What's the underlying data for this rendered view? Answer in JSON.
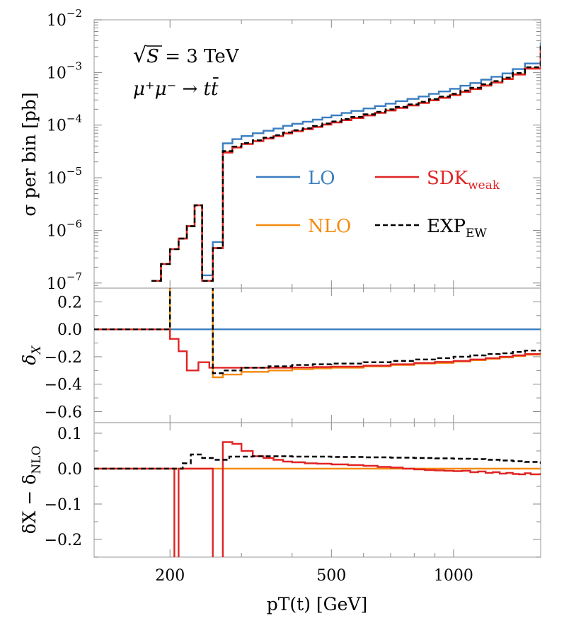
{
  "chart_data": [
    {
      "panel": "top",
      "type": "line",
      "ylabel": "σ per bin [pb]",
      "yscale": "log",
      "ylim": [
        8e-08,
        0.01
      ],
      "yticks": [
        {
          "value": 1e-07,
          "base": "10",
          "exp": "−7"
        },
        {
          "value": 1e-06,
          "base": "10",
          "exp": "−6"
        },
        {
          "value": 1e-05,
          "base": "10",
          "exp": "−5"
        },
        {
          "value": 0.0001,
          "base": "10",
          "exp": "−4"
        },
        {
          "value": 0.001,
          "base": "10",
          "exp": "−3"
        },
        {
          "value": 0.01,
          "base": "10",
          "exp": "−2"
        }
      ],
      "annotations": [
        {
          "sqrt": "√",
          "symbol": "S",
          "text": " = 3 TeV"
        },
        {
          "text": "μ⁺μ⁻ → tt̄"
        }
      ],
      "legend": [
        {
          "base": "LO",
          "sub": "",
          "color": "#3a7ec0",
          "style": "solid"
        },
        {
          "base": "SDK",
          "sub": "weak",
          "color": "#e02425",
          "style": "solid"
        },
        {
          "base": "NLO",
          "sub": "",
          "color": "#f58a0f",
          "style": "solid"
        },
        {
          "base": "EXP",
          "sub": "EW",
          "color": "#000000",
          "style": "dashed"
        }
      ],
      "series": [
        {
          "name": "LO",
          "color": "#3a7ec0",
          "x": [
            180,
            190,
            200,
            210,
            220,
            230,
            240,
            255,
            270,
            285,
            300,
            320,
            340,
            360,
            380,
            400,
            425,
            450,
            475,
            500,
            530,
            560,
            600,
            640,
            680,
            720,
            770,
            820,
            870,
            920,
            980,
            1040,
            1100,
            1170,
            1240,
            1320,
            1400,
            1500,
            1640
          ],
          "y": [
            1.1e-07,
            2.3e-07,
            4.4e-07,
            7e-07,
            1.2e-06,
            3e-06,
            1.4e-07,
            6e-07,
            4.5e-05,
            5.4e-05,
            6.2e-05,
            7e-05,
            7.8e-05,
            8.6e-05,
            9.7e-05,
            0.000106,
            0.000116,
            0.000127,
            0.00014,
            0.000153,
            0.00017,
            0.000186,
            0.000207,
            0.00023,
            0.000256,
            0.000285,
            0.000315,
            0.00035,
            0.000392,
            0.000435,
            0.00049,
            0.00056,
            0.00063,
            0.00073,
            0.00083,
            0.00096,
            0.00116,
            0.00148,
            0.0037
          ]
        },
        {
          "name": "NLO",
          "color": "#f58a0f",
          "x": [
            180,
            190,
            200,
            210,
            220,
            230,
            240,
            255,
            270,
            285,
            300,
            320,
            340,
            360,
            380,
            400,
            425,
            450,
            475,
            500,
            530,
            560,
            600,
            640,
            680,
            720,
            770,
            820,
            870,
            920,
            980,
            1040,
            1100,
            1170,
            1240,
            1320,
            1400,
            1500,
            1640
          ],
          "y": [
            1.1e-07,
            2.3e-07,
            4.4e-07,
            7e-07,
            1.2e-06,
            3e-06,
            1.1e-07,
            4.6e-07,
            3.1e-05,
            3.8e-05,
            4.4e-05,
            5e-05,
            5.6e-05,
            6.2e-05,
            7e-05,
            7.7e-05,
            8.4e-05,
            9.3e-05,
            0.000103,
            0.000113,
            0.000125,
            0.000138,
            0.000154,
            0.000172,
            0.000192,
            0.000214,
            0.000238,
            0.000266,
            0.000299,
            0.000334,
            0.000377,
            0.000433,
            0.00049,
            0.000572,
            0.000654,
            0.00076,
            0.00093,
            0.0012,
            0.00305
          ]
        },
        {
          "name": "SDK_weak",
          "color": "#e02425",
          "x": [
            180,
            190,
            200,
            210,
            220,
            230,
            240,
            255,
            270,
            285,
            300,
            320,
            340,
            360,
            380,
            400,
            425,
            450,
            475,
            500,
            530,
            560,
            600,
            640,
            680,
            720,
            770,
            820,
            870,
            920,
            980,
            1040,
            1100,
            1170,
            1240,
            1320,
            1400,
            1500,
            1640
          ],
          "y": [
            1.1e-07,
            2.3e-07,
            4.4e-07,
            7e-07,
            1.2e-06,
            3e-06,
            1.1e-07,
            4.6e-07,
            3e-05,
            3.75e-05,
            4.35e-05,
            4.95e-05,
            5.55e-05,
            6.15e-05,
            6.95e-05,
            7.65e-05,
            8.35e-05,
            9.2e-05,
            0.000102,
            0.000112,
            0.000124,
            0.000136,
            0.000152,
            0.00017,
            0.000189,
            0.000211,
            0.000235,
            0.000262,
            0.000295,
            0.000329,
            0.000371,
            0.000426,
            0.000482,
            0.000562,
            0.000642,
            0.000746,
            0.00091,
            0.00118,
            0.00298
          ]
        },
        {
          "name": "EXP_EW",
          "color": "#000000",
          "dashed": true,
          "x": [
            180,
            190,
            200,
            210,
            220,
            230,
            240,
            255,
            270,
            285,
            300,
            320,
            340,
            360,
            380,
            400,
            425,
            450,
            475,
            500,
            530,
            560,
            600,
            640,
            680,
            720,
            770,
            820,
            870,
            920,
            980,
            1040,
            1100,
            1170,
            1240,
            1320,
            1400,
            1500,
            1640
          ],
          "y": [
            1.1e-07,
            2.3e-07,
            4.4e-07,
            7e-07,
            1.2e-06,
            3e-06,
            1.1e-07,
            4.6e-07,
            3.2e-05,
            3.9e-05,
            4.55e-05,
            5.15e-05,
            5.8e-05,
            6.45e-05,
            7.25e-05,
            8e-05,
            8.7e-05,
            9.65e-05,
            0.000107,
            0.000117,
            0.00013,
            0.000143,
            0.00016,
            0.000179,
            0.000199,
            0.000222,
            0.000248,
            0.000277,
            0.000312,
            0.000348,
            0.000393,
            0.000452,
            0.000512,
            0.000598,
            0.000685,
            0.000796,
            0.000975,
            0.00126,
            0.0032
          ]
        }
      ]
    },
    {
      "panel": "middle",
      "type": "line",
      "ylabel": "δX",
      "ylim": [
        -0.68,
        0.3
      ],
      "yticks": [
        {
          "value": 0.2,
          "label": "0.2"
        },
        {
          "value": 0.0,
          "label": "0.0"
        },
        {
          "value": -0.2,
          "label": "−0.2"
        },
        {
          "value": -0.4,
          "label": "−0.4"
        },
        {
          "value": -0.6,
          "label": "−0.6"
        }
      ],
      "series": [
        {
          "name": "LO",
          "color": "#3a7ec0",
          "x": [
            130,
            1640
          ],
          "y": [
            0,
            0
          ]
        },
        {
          "name": "NLO",
          "color": "#f58a0f",
          "x": [
            130,
            200,
            255,
            270,
            300,
            350,
            400,
            450,
            500,
            600,
            700,
            800,
            900,
            1000,
            1100,
            1200,
            1300,
            1400,
            1500,
            1640
          ],
          "y": [
            0,
            0.35,
            -0.35,
            -0.33,
            -0.31,
            -0.3,
            -0.29,
            -0.285,
            -0.28,
            -0.27,
            -0.26,
            -0.25,
            -0.245,
            -0.235,
            -0.225,
            -0.215,
            -0.205,
            -0.195,
            -0.185,
            -0.17
          ]
        },
        {
          "name": "SDK_weak",
          "color": "#e02425",
          "x": [
            130,
            200,
            210,
            220,
            235,
            250,
            300,
            350,
            400,
            450,
            500,
            600,
            700,
            800,
            900,
            1000,
            1100,
            1200,
            1300,
            1400,
            1500,
            1640
          ],
          "y": [
            0,
            -0.07,
            -0.16,
            -0.3,
            -0.24,
            -0.28,
            -0.28,
            -0.28,
            -0.278,
            -0.275,
            -0.272,
            -0.265,
            -0.255,
            -0.245,
            -0.238,
            -0.23,
            -0.22,
            -0.21,
            -0.2,
            -0.19,
            -0.18,
            -0.17
          ]
        },
        {
          "name": "EXP_EW",
          "color": "#000000",
          "dashed": true,
          "x": [
            130,
            200,
            255,
            270,
            300,
            350,
            400,
            450,
            500,
            600,
            700,
            800,
            900,
            1000,
            1100,
            1200,
            1300,
            1400,
            1500,
            1640
          ],
          "y": [
            0,
            0.35,
            -0.32,
            -0.3,
            -0.28,
            -0.27,
            -0.26,
            -0.255,
            -0.25,
            -0.24,
            -0.23,
            -0.22,
            -0.21,
            -0.2,
            -0.19,
            -0.18,
            -0.175,
            -0.165,
            -0.155,
            -0.15
          ]
        }
      ]
    },
    {
      "panel": "bottom",
      "type": "line",
      "ylabel_base": "δX − δ",
      "ylabel_sub": "NLO",
      "xlabel": "pT(t) [GeV]",
      "xscale": "log",
      "xlim": [
        130,
        1640
      ],
      "xticks": [
        {
          "value": 200,
          "label": "200"
        },
        {
          "value": 500,
          "label": "500"
        },
        {
          "value": 1000,
          "label": "1000"
        }
      ],
      "ylim": [
        -0.25,
        0.13
      ],
      "yticks": [
        {
          "value": 0.1,
          "label": "0.1"
        },
        {
          "value": 0.0,
          "label": "0.0"
        },
        {
          "value": -0.1,
          "label": "−0.1"
        },
        {
          "value": -0.2,
          "label": "−0.2"
        }
      ],
      "series": [
        {
          "name": "NLO",
          "color": "#f58a0f",
          "x": [
            130,
            1640
          ],
          "y": [
            0,
            0
          ]
        },
        {
          "name": "SDK_weak",
          "color": "#e02425",
          "x": [
            130,
            205,
            210,
            255,
            270,
            285,
            300,
            320,
            340,
            360,
            380,
            400,
            430,
            460,
            500,
            550,
            600,
            650,
            700,
            750,
            800,
            850,
            900,
            950,
            1000,
            1050,
            1100,
            1150,
            1200,
            1250,
            1300,
            1350,
            1400,
            1450,
            1500,
            1550,
            1640
          ],
          "y": [
            0,
            -0.4,
            0,
            -0.4,
            0.075,
            0.07,
            0.05,
            0.035,
            0.03,
            0.025,
            0.02,
            0.018,
            0.015,
            0.014,
            0.012,
            0.01,
            0.008,
            0.005,
            0.003,
            0.0,
            -0.002,
            -0.004,
            -0.005,
            -0.006,
            -0.007,
            -0.006,
            -0.01,
            -0.008,
            -0.012,
            -0.01,
            -0.014,
            -0.012,
            -0.015,
            -0.016,
            -0.013,
            -0.016,
            -0.012
          ]
        },
        {
          "name": "EXP_EW",
          "color": "#000000",
          "dashed": true,
          "x": [
            130,
            215,
            225,
            240,
            255,
            280,
            320,
            400,
            500,
            600,
            700,
            800,
            900,
            1000,
            1100,
            1200,
            1300,
            1400,
            1500,
            1640
          ],
          "y": [
            0,
            0.015,
            0.04,
            0.03,
            0.025,
            0.034,
            0.035,
            0.034,
            0.033,
            0.032,
            0.031,
            0.03,
            0.029,
            0.028,
            0.027,
            0.025,
            0.023,
            0.021,
            0.019,
            0.014
          ]
        }
      ]
    }
  ]
}
